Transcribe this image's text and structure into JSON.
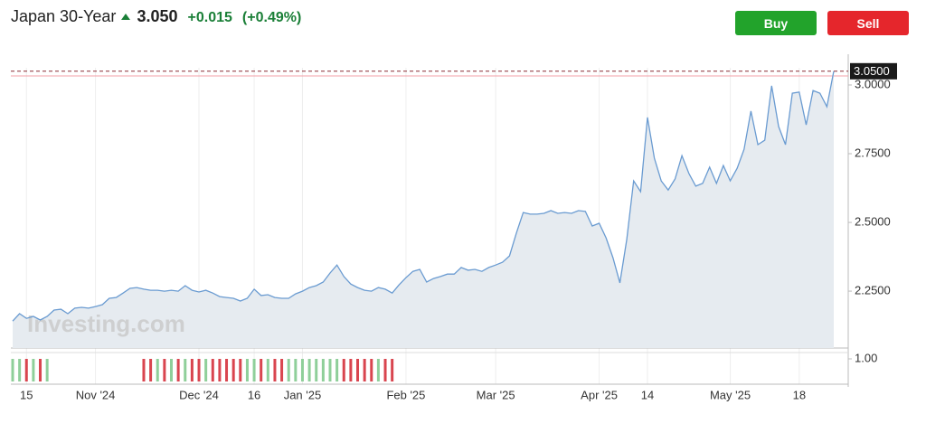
{
  "header": {
    "title": "Japan 30-Year",
    "price": "3.050",
    "change": "+0.015",
    "change_percent": "(+0.49%)",
    "change_color": "#1a7f37"
  },
  "buttons": {
    "buy": "Buy",
    "sell": "Sell"
  },
  "chart_data": {
    "type": "area",
    "watermark": "Investing.com",
    "categories": [
      null,
      null,
      "15",
      null,
      null,
      null,
      null,
      null,
      null,
      null,
      null,
      null,
      "Nov '24",
      null,
      null,
      null,
      null,
      null,
      null,
      null,
      null,
      null,
      null,
      null,
      null,
      null,
      null,
      "Dec '24",
      null,
      null,
      null,
      null,
      null,
      null,
      null,
      "16",
      null,
      null,
      null,
      null,
      null,
      null,
      "Jan '25",
      null,
      null,
      null,
      null,
      null,
      null,
      null,
      null,
      null,
      null,
      null,
      null,
      null,
      null,
      "Feb '25",
      null,
      null,
      null,
      null,
      null,
      null,
      null,
      null,
      null,
      null,
      null,
      null,
      "Mar '25",
      null,
      null,
      null,
      null,
      null,
      null,
      null,
      null,
      null,
      null,
      null,
      null,
      null,
      null,
      "Apr '25",
      null,
      null,
      null,
      null,
      null,
      null,
      "14",
      null,
      null,
      null,
      null,
      null,
      null,
      null,
      null,
      null,
      null,
      null,
      "May '25",
      null,
      null,
      null,
      null,
      null,
      null,
      null,
      null,
      null,
      "18",
      null,
      null,
      null,
      null,
      null
    ],
    "series": [
      {
        "name": "Japan 30-Year",
        "color": "#6a9bd1",
        "fill": "#e6ebf0",
        "values": [
          2.141,
          2.168,
          2.151,
          2.158,
          2.145,
          2.158,
          2.181,
          2.184,
          2.168,
          2.188,
          2.191,
          2.188,
          2.194,
          2.201,
          2.224,
          2.227,
          2.243,
          2.26,
          2.263,
          2.257,
          2.253,
          2.253,
          2.25,
          2.253,
          2.25,
          2.27,
          2.253,
          2.247,
          2.253,
          2.243,
          2.23,
          2.227,
          2.224,
          2.214,
          2.224,
          2.257,
          2.234,
          2.237,
          2.227,
          2.224,
          2.224,
          2.24,
          2.25,
          2.263,
          2.27,
          2.283,
          2.316,
          2.345,
          2.303,
          2.276,
          2.263,
          2.253,
          2.25,
          2.263,
          2.257,
          2.243,
          2.273,
          2.299,
          2.322,
          2.329,
          2.283,
          2.296,
          2.303,
          2.312,
          2.312,
          2.336,
          2.326,
          2.329,
          2.322,
          2.336,
          2.345,
          2.355,
          2.378,
          2.461,
          2.536,
          2.53,
          2.53,
          2.533,
          2.543,
          2.533,
          2.536,
          2.533,
          2.543,
          2.54,
          2.487,
          2.497,
          2.444,
          2.372,
          2.28,
          2.438,
          2.651,
          2.612,
          2.882,
          2.734,
          2.651,
          2.618,
          2.658,
          2.743,
          2.678,
          2.632,
          2.642,
          2.701,
          2.642,
          2.707,
          2.651,
          2.697,
          2.766,
          2.905,
          2.783,
          2.799,
          2.997,
          2.849,
          2.783,
          2.97,
          2.974,
          2.855,
          2.98,
          2.97,
          2.921,
          3.05
        ]
      }
    ],
    "ylim": [
      2.043,
      3.0625
    ],
    "yticks": [
      {
        "value": 2.25,
        "label": "2.2500"
      },
      {
        "value": 2.5,
        "label": "2.5000"
      },
      {
        "value": 2.75,
        "label": "2.7500"
      },
      {
        "value": 3,
        "label": "3.0000"
      }
    ],
    "last_price": {
      "value": 3.05,
      "label": "3.0500"
    },
    "volume": {
      "values": [
        1,
        1,
        1,
        1,
        1,
        1,
        null,
        null,
        null,
        null,
        null,
        null,
        null,
        null,
        null,
        null,
        null,
        null,
        null,
        1,
        1,
        1,
        1,
        1,
        1,
        1,
        1,
        1,
        1,
        1,
        1,
        1,
        1,
        1,
        1,
        1,
        1,
        1,
        1,
        1,
        1,
        1,
        1,
        1,
        1,
        1,
        1,
        1,
        1,
        1,
        1,
        1,
        1,
        1,
        1,
        1,
        null,
        null,
        null,
        null,
        null,
        null,
        null,
        null,
        null,
        null,
        null,
        null,
        null,
        null,
        null,
        null,
        null,
        null,
        null,
        null,
        null,
        null,
        null,
        null,
        null,
        null,
        null,
        null,
        null,
        null,
        null,
        null,
        null,
        null,
        null,
        null,
        null,
        null,
        null,
        null,
        null,
        null,
        null,
        null,
        null,
        null,
        null,
        null,
        null,
        null,
        null,
        null,
        null,
        null,
        null,
        null,
        null,
        null,
        null,
        null,
        null,
        null,
        null,
        null
      ],
      "color_up": "#8fcf9a",
      "color_down": "#d9454f",
      "ylim": [
        0,
        1.2
      ],
      "yticks": [
        {
          "value": 1,
          "label": "1.00"
        }
      ]
    }
  }
}
